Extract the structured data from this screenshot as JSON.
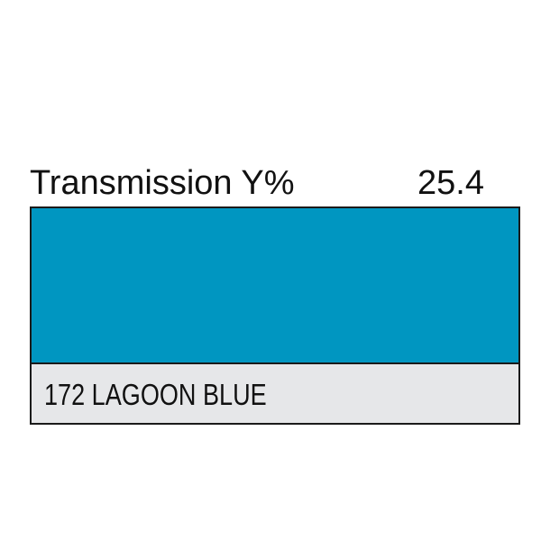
{
  "transmission": {
    "label": "Transmission Y%",
    "value": "25.4"
  },
  "filter": {
    "name": "172 LAGOON BLUE"
  },
  "colors": {
    "swatch": "#0096c1",
    "name_bar": "#e6e7e9",
    "border": "#1a1a1a"
  }
}
